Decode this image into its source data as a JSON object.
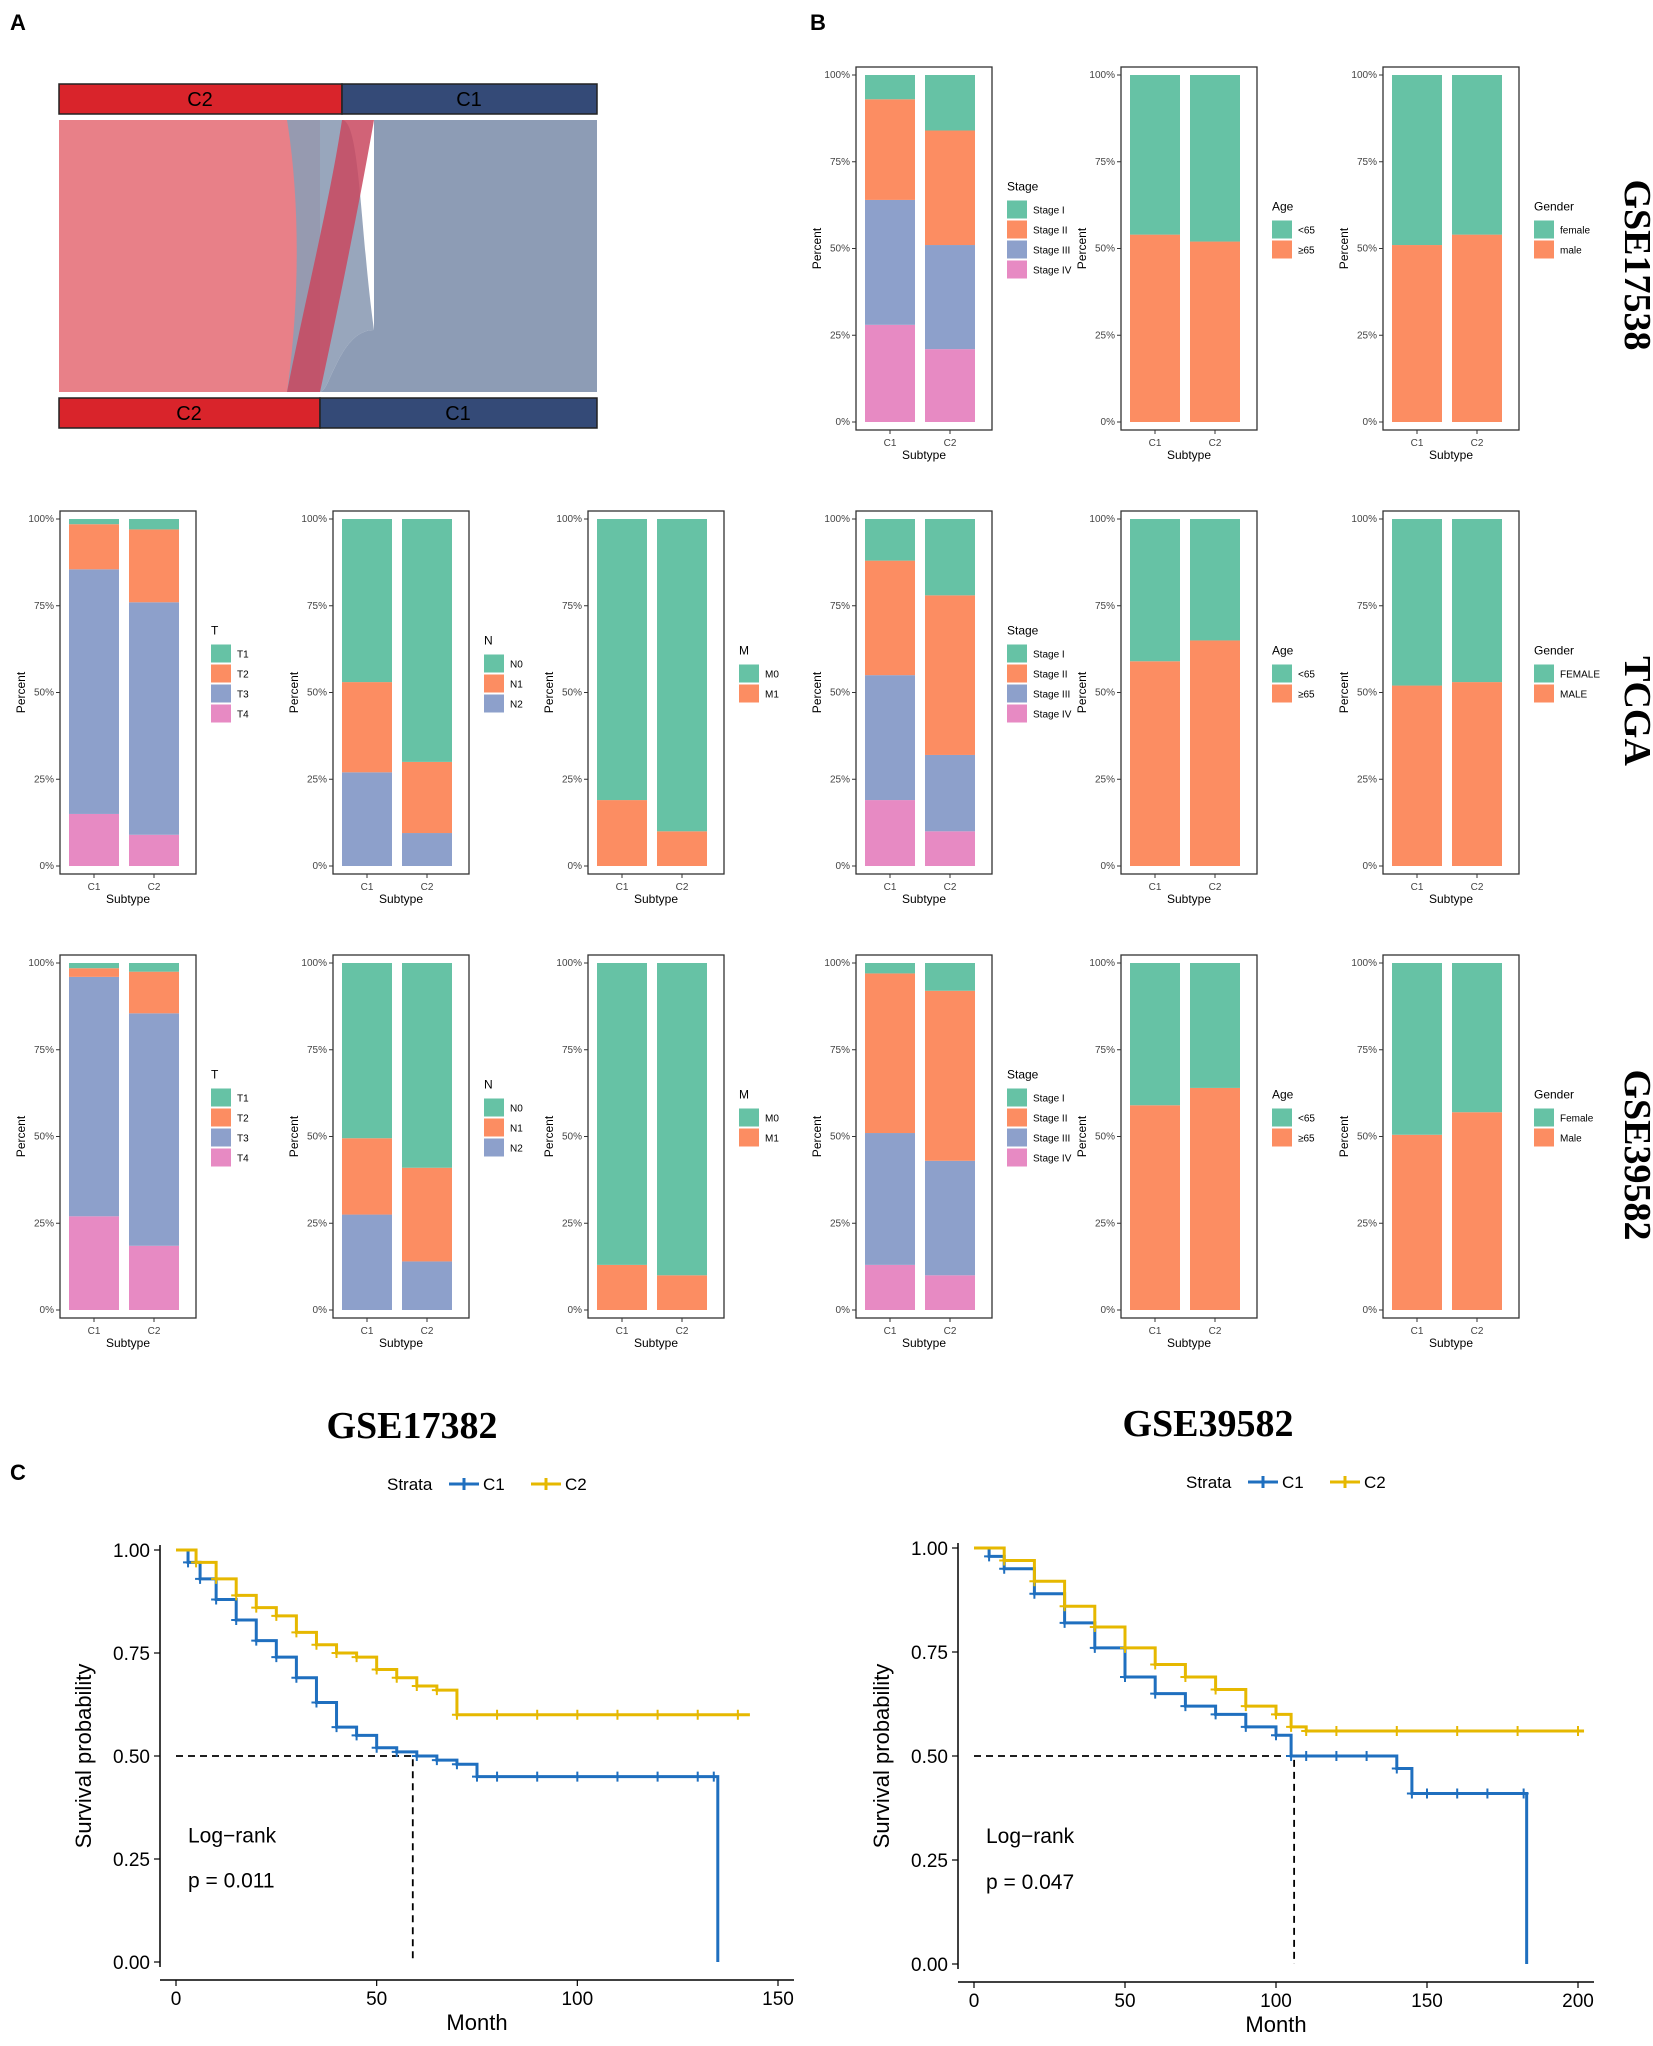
{
  "panel_labels": {
    "a": "A",
    "b": "B",
    "c": "C"
  },
  "colors": {
    "green": "#66c2a5",
    "orange": "#fc8d62",
    "blue": "#8da0cb",
    "pink": "#e78ac3",
    "sankey_red": "#d9242b",
    "sankey_navy": "#344a77",
    "km_c1": "#1f6fbf",
    "km_c2": "#e6b800"
  },
  "row_labels": {
    "gse17538": "GSE17538",
    "tcga": "TCGA",
    "gse39582": "GSE39582"
  },
  "col_labels": {
    "left": "GSE17382",
    "right": "GSE39582"
  },
  "sankey": {
    "top_labels": [
      "C2",
      "C1"
    ],
    "bottom_labels": [
      "C2",
      "C1"
    ]
  },
  "bar_axis": {
    "ylabel": "Percent",
    "xlabel": "Subtype",
    "ticks": [
      "0%",
      "25%",
      "50%",
      "75%",
      "100%"
    ],
    "categories": [
      "C1",
      "C2"
    ]
  },
  "chart_data": [
    {
      "type": "bar",
      "panel": "B",
      "row": "GSE17538",
      "variable": "Stage",
      "legend_title": "Stage",
      "categories": [
        "C1",
        "C2"
      ],
      "series": [
        {
          "name": "Stage I",
          "values": [
            7,
            16
          ]
        },
        {
          "name": "Stage II",
          "values": [
            29,
            33
          ]
        },
        {
          "name": "Stage III",
          "values": [
            36,
            30
          ]
        },
        {
          "name": "Stage IV",
          "values": [
            28,
            21
          ]
        }
      ]
    },
    {
      "type": "bar",
      "panel": "B",
      "row": "GSE17538",
      "variable": "Age",
      "legend_title": "Age",
      "categories": [
        "C1",
        "C2"
      ],
      "series": [
        {
          "name": "<65",
          "values": [
            46,
            48
          ]
        },
        {
          "name": "≥65",
          "values": [
            54,
            52
          ]
        }
      ]
    },
    {
      "type": "bar",
      "panel": "B",
      "row": "GSE17538",
      "variable": "Gender",
      "legend_title": "Gender",
      "categories": [
        "C1",
        "C2"
      ],
      "series": [
        {
          "name": "female",
          "values": [
            49,
            46
          ]
        },
        {
          "name": "male",
          "values": [
            51,
            54
          ]
        }
      ]
    },
    {
      "type": "bar",
      "panel": "A",
      "row": "TCGA",
      "variable": "T",
      "legend_title": "T",
      "categories": [
        "C1",
        "C2"
      ],
      "series": [
        {
          "name": "T1",
          "values": [
            1.5,
            3
          ]
        },
        {
          "name": "T2",
          "values": [
            13,
            21
          ]
        },
        {
          "name": "T3",
          "values": [
            70.5,
            67
          ]
        },
        {
          "name": "T4",
          "values": [
            15,
            9
          ]
        }
      ]
    },
    {
      "type": "bar",
      "panel": "A",
      "row": "TCGA",
      "variable": "N",
      "legend_title": "N",
      "categories": [
        "C1",
        "C2"
      ],
      "series": [
        {
          "name": "N0",
          "values": [
            47,
            70
          ]
        },
        {
          "name": "N1",
          "values": [
            26,
            20.5
          ]
        },
        {
          "name": "N2",
          "values": [
            27,
            9.5
          ]
        }
      ]
    },
    {
      "type": "bar",
      "panel": "A",
      "row": "TCGA",
      "variable": "M",
      "legend_title": "M",
      "categories": [
        "C1",
        "C2"
      ],
      "series": [
        {
          "name": "M0",
          "values": [
            81,
            90
          ]
        },
        {
          "name": "M1",
          "values": [
            19,
            10
          ]
        }
      ]
    },
    {
      "type": "bar",
      "panel": "B",
      "row": "TCGA",
      "variable": "Stage",
      "legend_title": "Stage",
      "categories": [
        "C1",
        "C2"
      ],
      "series": [
        {
          "name": "Stage I",
          "values": [
            12,
            22
          ]
        },
        {
          "name": "Stage II",
          "values": [
            33,
            46
          ]
        },
        {
          "name": "Stage III",
          "values": [
            36,
            22
          ]
        },
        {
          "name": "Stage IV",
          "values": [
            19,
            10
          ]
        }
      ]
    },
    {
      "type": "bar",
      "panel": "B",
      "row": "TCGA",
      "variable": "Age",
      "legend_title": "Age",
      "categories": [
        "C1",
        "C2"
      ],
      "series": [
        {
          "name": "<65",
          "values": [
            41,
            35
          ]
        },
        {
          "name": "≥65",
          "values": [
            59,
            65
          ]
        }
      ]
    },
    {
      "type": "bar",
      "panel": "B",
      "row": "TCGA",
      "variable": "Gender",
      "legend_title": "Gender",
      "categories": [
        "C1",
        "C2"
      ],
      "series": [
        {
          "name": "FEMALE",
          "values": [
            48,
            47
          ]
        },
        {
          "name": "MALE",
          "values": [
            52,
            53
          ]
        }
      ]
    },
    {
      "type": "bar",
      "panel": "A",
      "row": "GSE39582",
      "variable": "T",
      "legend_title": "T",
      "categories": [
        "C1",
        "C2"
      ],
      "series": [
        {
          "name": "T1",
          "values": [
            1.5,
            2.5
          ]
        },
        {
          "name": "T2",
          "values": [
            2.5,
            12
          ]
        },
        {
          "name": "T3",
          "values": [
            69,
            67
          ]
        },
        {
          "name": "T4",
          "values": [
            27,
            18.5
          ]
        }
      ]
    },
    {
      "type": "bar",
      "panel": "A",
      "row": "GSE39582",
      "variable": "N",
      "legend_title": "N",
      "categories": [
        "C1",
        "C2"
      ],
      "series": [
        {
          "name": "N0",
          "values": [
            50.5,
            59
          ]
        },
        {
          "name": "N1",
          "values": [
            22,
            27
          ]
        },
        {
          "name": "N2",
          "values": [
            27.5,
            14
          ]
        }
      ]
    },
    {
      "type": "bar",
      "panel": "A",
      "row": "GSE39582",
      "variable": "M",
      "legend_title": "M",
      "categories": [
        "C1",
        "C2"
      ],
      "series": [
        {
          "name": "M0",
          "values": [
            87,
            90
          ]
        },
        {
          "name": "M1",
          "values": [
            13,
            10
          ]
        }
      ]
    },
    {
      "type": "bar",
      "panel": "B",
      "row": "GSE39582",
      "variable": "Stage",
      "legend_title": "Stage",
      "categories": [
        "C1",
        "C2"
      ],
      "series": [
        {
          "name": "Stage I",
          "values": [
            3,
            8
          ]
        },
        {
          "name": "Stage II",
          "values": [
            46,
            49
          ]
        },
        {
          "name": "Stage III",
          "values": [
            38,
            33
          ]
        },
        {
          "name": "Stage IV",
          "values": [
            13,
            10
          ]
        }
      ]
    },
    {
      "type": "bar",
      "panel": "B",
      "row": "GSE39582",
      "variable": "Age",
      "legend_title": "Age",
      "categories": [
        "C1",
        "C2"
      ],
      "series": [
        {
          "name": "<65",
          "values": [
            41,
            36
          ]
        },
        {
          "name": "≥65",
          "values": [
            59,
            64
          ]
        }
      ]
    },
    {
      "type": "bar",
      "panel": "B",
      "row": "GSE39582",
      "variable": "Gender",
      "legend_title": "Gender",
      "categories": [
        "C1",
        "C2"
      ],
      "series": [
        {
          "name": "Female",
          "values": [
            49.5,
            43
          ]
        },
        {
          "name": "Male",
          "values": [
            50.5,
            57
          ]
        }
      ]
    },
    {
      "type": "line",
      "panel": "C",
      "dataset": "GSE17382",
      "title": "",
      "legend_title": "Strata",
      "xlabel": "Month",
      "ylabel": "Survival probability",
      "xlim": [
        0,
        150
      ],
      "ylim": [
        0,
        1
      ],
      "xticks": [
        0,
        50,
        100,
        150
      ],
      "yticks": [
        "0.00",
        "0.25",
        "0.50",
        "0.75",
        "1.00"
      ],
      "annotation": [
        "Log−rank",
        "p = 0.011"
      ],
      "median_survival": {
        "x": 59,
        "y": 0.5
      },
      "series": [
        {
          "name": "C1",
          "x": [
            0,
            3,
            6,
            10,
            15,
            20,
            25,
            30,
            35,
            40,
            45,
            50,
            55,
            60,
            65,
            70,
            75,
            80,
            90,
            100,
            110,
            120,
            130,
            134,
            135
          ],
          "y": [
            1.0,
            0.97,
            0.93,
            0.88,
            0.83,
            0.78,
            0.74,
            0.69,
            0.63,
            0.57,
            0.55,
            0.52,
            0.51,
            0.5,
            0.49,
            0.48,
            0.45,
            0.45,
            0.45,
            0.45,
            0.45,
            0.45,
            0.45,
            0.45,
            0.0
          ]
        },
        {
          "name": "C2",
          "x": [
            0,
            5,
            10,
            15,
            20,
            25,
            30,
            35,
            40,
            45,
            50,
            55,
            60,
            65,
            70,
            80,
            90,
            100,
            110,
            120,
            130,
            140,
            143
          ],
          "y": [
            1.0,
            0.97,
            0.93,
            0.89,
            0.86,
            0.84,
            0.8,
            0.77,
            0.75,
            0.74,
            0.71,
            0.69,
            0.67,
            0.66,
            0.6,
            0.6,
            0.6,
            0.6,
            0.6,
            0.6,
            0.6,
            0.6,
            0.6
          ]
        }
      ]
    },
    {
      "type": "line",
      "panel": "C",
      "dataset": "GSE39582",
      "title": "",
      "legend_title": "Strata",
      "xlabel": "Month",
      "ylabel": "Survival probability",
      "xlim": [
        0,
        200
      ],
      "ylim": [
        0,
        1
      ],
      "xticks": [
        0,
        50,
        100,
        150,
        200
      ],
      "yticks": [
        "0.00",
        "0.25",
        "0.50",
        "0.75",
        "1.00"
      ],
      "annotation": [
        "Log−rank",
        "p = 0.047"
      ],
      "median_survival": {
        "x": 106,
        "y": 0.5
      },
      "series": [
        {
          "name": "C1",
          "x": [
            0,
            5,
            10,
            20,
            30,
            40,
            50,
            60,
            70,
            80,
            90,
            100,
            105,
            110,
            120,
            130,
            140,
            145,
            150,
            160,
            170,
            182,
            183
          ],
          "y": [
            1.0,
            0.98,
            0.95,
            0.89,
            0.82,
            0.76,
            0.69,
            0.65,
            0.62,
            0.6,
            0.57,
            0.55,
            0.5,
            0.5,
            0.5,
            0.5,
            0.47,
            0.41,
            0.41,
            0.41,
            0.41,
            0.41,
            0.0
          ]
        },
        {
          "name": "C2",
          "x": [
            0,
            10,
            20,
            30,
            40,
            50,
            60,
            70,
            80,
            90,
            100,
            105,
            110,
            120,
            140,
            160,
            180,
            200,
            202
          ],
          "y": [
            1.0,
            0.97,
            0.92,
            0.86,
            0.81,
            0.76,
            0.72,
            0.69,
            0.66,
            0.62,
            0.6,
            0.57,
            0.56,
            0.56,
            0.56,
            0.56,
            0.56,
            0.56,
            0.56
          ]
        }
      ]
    }
  ]
}
